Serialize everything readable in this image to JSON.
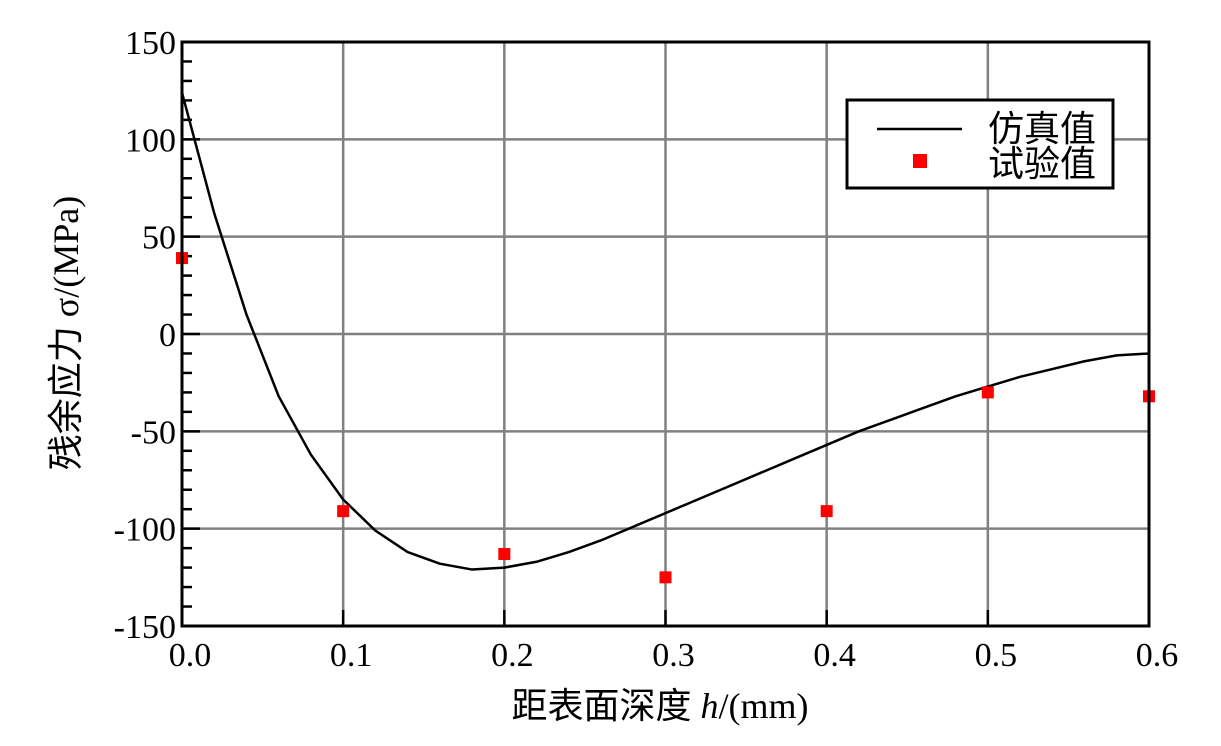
{
  "chart_data": {
    "type": "line",
    "xlabel_prefix": "距表面深度 ",
    "xlabel_var": "h",
    "xlabel_unit": "/(mm)",
    "ylabel": "残余应力 σ/(MPa)",
    "xlim": [
      0,
      0.6
    ],
    "ylim": [
      -150,
      150
    ],
    "x_ticks": [
      0.0,
      0.1,
      0.2,
      0.3,
      0.4,
      0.5,
      0.6
    ],
    "x_tick_labels": [
      "0.0",
      "0.1",
      "0.2",
      "0.3",
      "0.4",
      "0.5",
      "0.6"
    ],
    "y_ticks": [
      150,
      100,
      50,
      0,
      -50,
      -100,
      -150
    ],
    "y_tick_labels": [
      "150",
      "100",
      "50",
      "0",
      "-50",
      "-100",
      "-150"
    ],
    "grid": true,
    "legend_position": "top-right",
    "series": [
      {
        "name": "仿真值",
        "type": "line",
        "color": "#000000",
        "x": [
          0.0,
          0.02,
          0.04,
          0.06,
          0.08,
          0.1,
          0.12,
          0.14,
          0.16,
          0.18,
          0.2,
          0.22,
          0.24,
          0.26,
          0.28,
          0.3,
          0.32,
          0.34,
          0.36,
          0.38,
          0.4,
          0.42,
          0.44,
          0.46,
          0.48,
          0.5,
          0.52,
          0.54,
          0.56,
          0.58,
          0.6
        ],
        "y": [
          124,
          62,
          10,
          -32,
          -62,
          -85,
          -101,
          -112,
          -118,
          -121,
          -120,
          -117,
          -112,
          -106,
          -99,
          -92,
          -85,
          -78,
          -71,
          -64,
          -57,
          -50,
          -44,
          -38,
          -32,
          -27,
          -22,
          -18,
          -14,
          -11,
          -10
        ]
      },
      {
        "name": "试验值",
        "type": "scatter",
        "color": "#ff0000",
        "x": [
          0.0,
          0.1,
          0.2,
          0.3,
          0.4,
          0.5,
          0.6
        ],
        "y": [
          39,
          -91,
          -113,
          -125,
          -91,
          -30,
          -32
        ]
      }
    ]
  }
}
